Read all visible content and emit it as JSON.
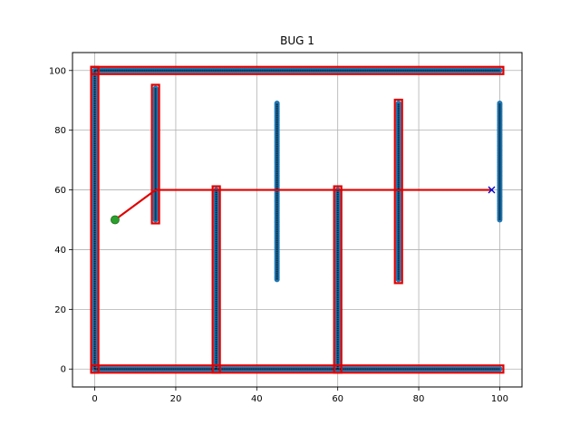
{
  "chart_data": {
    "type": "scatter",
    "title": "BUG 1",
    "xlabel": "",
    "ylabel": "",
    "xlim": [
      -5.5,
      105.5
    ],
    "ylim": [
      -6,
      106
    ],
    "xticks": [
      0,
      20,
      40,
      60,
      80,
      100
    ],
    "yticks": [
      0,
      20,
      40,
      60,
      80,
      100
    ],
    "grid": true,
    "colors": {
      "obstacle_points": "#1f77b4",
      "obstacle_centerline": "#000000",
      "path": "#e00000",
      "start": "#2ca02c",
      "goal": "#0000cc",
      "grid": "#b0b0b0"
    },
    "obstacles": [
      {
        "x": [
          0,
          0
        ],
        "y": [
          0,
          100
        ]
      },
      {
        "x": [
          0,
          100
        ],
        "y": [
          100,
          100
        ]
      },
      {
        "x": [
          0,
          100
        ],
        "y": [
          0,
          0
        ]
      },
      {
        "x": [
          15,
          15
        ],
        "y": [
          50,
          94
        ]
      },
      {
        "x": [
          30,
          30
        ],
        "y": [
          0,
          60
        ]
      },
      {
        "x": [
          45,
          45
        ],
        "y": [
          30,
          89
        ]
      },
      {
        "x": [
          60,
          60
        ],
        "y": [
          0,
          60
        ]
      },
      {
        "x": [
          75,
          75
        ],
        "y": [
          30,
          89
        ]
      },
      {
        "x": [
          100,
          100
        ],
        "y": [
          50,
          89
        ]
      }
    ],
    "boundary_followed": [
      {
        "x": [
          0,
          0
        ],
        "y": [
          0,
          100
        ]
      },
      {
        "x": [
          0,
          100
        ],
        "y": [
          100,
          100
        ]
      },
      {
        "x": [
          0,
          100
        ],
        "y": [
          0,
          0
        ]
      },
      {
        "x": [
          15,
          15
        ],
        "y": [
          50,
          94
        ]
      },
      {
        "x": [
          30,
          30
        ],
        "y": [
          0,
          60
        ]
      },
      {
        "x": [
          60,
          60
        ],
        "y": [
          0,
          60
        ]
      },
      {
        "x": [
          75,
          75
        ],
        "y": [
          30,
          89
        ]
      }
    ],
    "path": {
      "x": [
        5,
        14,
        15,
        29,
        30,
        59,
        60,
        74,
        75,
        98
      ],
      "y": [
        50,
        59,
        60,
        60,
        60,
        60,
        60,
        60,
        60,
        60
      ]
    },
    "start": {
      "x": 5,
      "y": 50
    },
    "goal": {
      "x": 98,
      "y": 60
    }
  }
}
